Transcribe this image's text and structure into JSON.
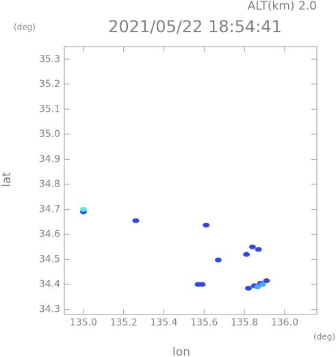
{
  "chart_data": {
    "type": "scatter",
    "label": "ALT(km) 2.0",
    "title": "2021/05/22 18:54:41",
    "ylabel": "lat",
    "xlabel": "lon",
    "yunit": "(deg)",
    "xunit": "(deg)",
    "xlim": [
      134.905,
      136.16
    ],
    "ylim": [
      34.28,
      35.35
    ],
    "xticks": [
      {
        "value": 135,
        "label": "135.0"
      },
      135.2,
      135.4,
      135.6,
      135.8,
      {
        "value": 136,
        "label": "136.0"
      }
    ],
    "yticks": [
      34.3,
      34.4,
      34.5,
      34.6,
      34.7,
      34.8,
      34.9,
      {
        "value": 35,
        "label": "35.0"
      },
      35.1,
      35.2,
      35.3
    ],
    "series": [
      {
        "color": "#3048e0",
        "x": [
          135.0,
          135.26,
          135.61,
          135.67,
          135.57,
          135.59,
          135.81,
          135.84,
          135.87,
          135.82,
          135.85,
          135.88,
          135.91
        ],
        "y": [
          34.69,
          34.655,
          34.637,
          34.498,
          34.4,
          34.4,
          34.52,
          34.55,
          34.54,
          34.385,
          34.395,
          34.405,
          34.415
        ]
      },
      {
        "color": "#45a8ff",
        "x": [
          135.865,
          135.89
        ],
        "y": [
          34.39,
          34.4
        ]
      },
      {
        "color": "#50e8f0",
        "x": [
          135.0
        ],
        "y": [
          34.7
        ]
      }
    ]
  }
}
